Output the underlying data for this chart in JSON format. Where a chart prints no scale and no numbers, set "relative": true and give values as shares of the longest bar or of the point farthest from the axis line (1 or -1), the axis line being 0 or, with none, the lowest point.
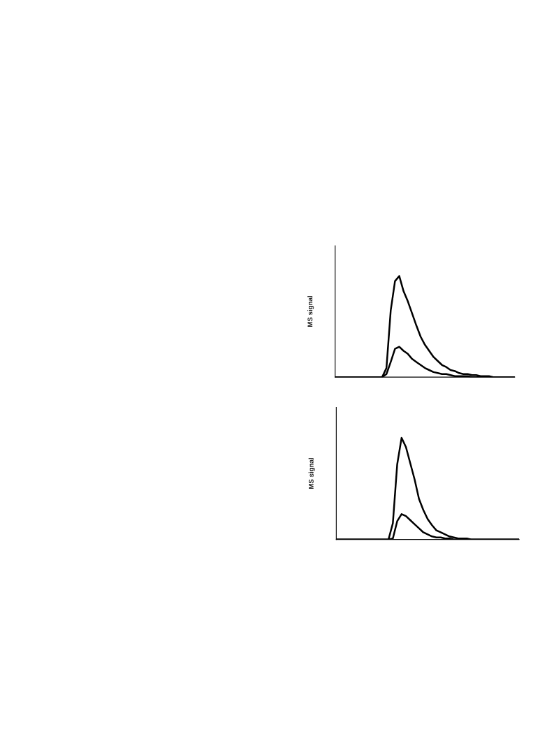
{
  "chart_data": [
    {
      "type": "line",
      "ylabel": "MS signal",
      "relative": true,
      "grid": false,
      "legend": false,
      "categories": [
        null,
        null,
        null,
        null,
        null,
        null,
        null,
        null,
        null,
        null,
        null,
        null,
        null,
        null,
        null,
        null,
        null,
        null,
        null,
        null,
        null,
        null,
        null,
        null,
        null,
        null,
        null,
        null,
        null,
        null,
        null,
        null,
        null,
        null,
        null,
        null,
        null,
        null,
        null,
        null,
        null,
        null,
        null
      ],
      "series": [
        {
          "color": "#000000",
          "values": [
            0,
            0,
            0,
            0,
            0,
            0,
            0,
            0,
            0,
            0,
            0,
            0,
            0.09,
            0.66,
            0.95,
            1.0,
            0.85,
            0.75,
            0.63,
            0.51,
            0.4,
            0.32,
            0.26,
            0.2,
            0.16,
            0.12,
            0.1,
            0.07,
            0.06,
            0.04,
            0.03,
            0.03,
            0.02,
            0.02,
            0.01,
            0.01,
            0.01,
            0,
            0,
            0,
            0,
            0,
            0
          ]
        },
        {
          "color": "#000000",
          "values": [
            0,
            0,
            0,
            0,
            0,
            0,
            0,
            0,
            0,
            0,
            0,
            0,
            0.03,
            0.15,
            0.28,
            0.3,
            0.26,
            0.23,
            0.18,
            0.15,
            0.12,
            0.09,
            0.07,
            0.05,
            0.04,
            0.03,
            0.03,
            0.02,
            0.01,
            0.01,
            0.01,
            0.01,
            0,
            0,
            0,
            0,
            0,
            0,
            0,
            0,
            0,
            0,
            0
          ]
        }
      ]
    },
    {
      "type": "line",
      "ylabel": "MS signal",
      "relative": true,
      "grid": false,
      "legend": false,
      "categories": [
        null,
        null,
        null,
        null,
        null,
        null,
        null,
        null,
        null,
        null,
        null,
        null,
        null,
        null,
        null,
        null,
        null,
        null,
        null,
        null,
        null,
        null,
        null,
        null,
        null,
        null,
        null,
        null,
        null,
        null,
        null,
        null,
        null,
        null,
        null,
        null,
        null,
        null,
        null,
        null,
        null,
        null,
        null
      ],
      "series": [
        {
          "color": "#000000",
          "values": [
            0,
            0,
            0,
            0,
            0,
            0,
            0,
            0,
            0,
            0,
            0,
            0,
            0,
            0.16,
            0.74,
            1.0,
            0.91,
            0.75,
            0.59,
            0.4,
            0.29,
            0.2,
            0.14,
            0.09,
            0.07,
            0.05,
            0.03,
            0.02,
            0.01,
            0.01,
            0.01,
            0,
            0,
            0,
            0,
            0,
            0,
            0,
            0,
            0,
            0,
            0,
            0
          ]
        },
        {
          "color": "#000000",
          "values": [
            0,
            0,
            0,
            0,
            0,
            0,
            0,
            0,
            0,
            0,
            0,
            0,
            0,
            0.01,
            0.18,
            0.25,
            0.23,
            0.19,
            0.15,
            0.11,
            0.07,
            0.05,
            0.03,
            0.02,
            0.02,
            0.01,
            0.01,
            0,
            0,
            0,
            0,
            0,
            0,
            0,
            0,
            0,
            0,
            0,
            0,
            0,
            0,
            0,
            0
          ]
        }
      ]
    }
  ]
}
